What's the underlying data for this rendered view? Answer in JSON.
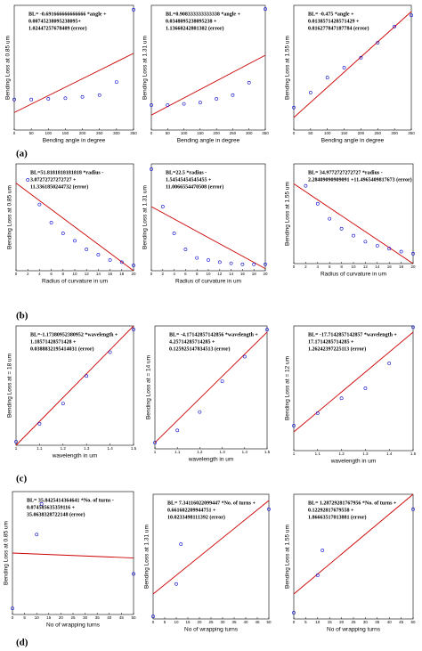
{
  "panel_labels": [
    "(a)",
    "(b)",
    "(c)",
    "(d)"
  ],
  "chart_data": [
    {
      "type": "scatter",
      "x_label": "Bending angle in degree",
      "y_label": "Bending Loss at 0.85 um",
      "annotation": [
        "BL= -0.691666666666666 *angle +",
        "0.00745238095238095+",
        "1.02447257678409 (error)"
      ],
      "xlim": [
        0,
        350
      ],
      "xticks": [
        0,
        50,
        100,
        150,
        200,
        250,
        300,
        350
      ],
      "ylim": [
        0,
        1
      ],
      "points": {
        "color": "#0000cc",
        "x": [
          0,
          50,
          100,
          150,
          200,
          250,
          300,
          350
        ],
        "y": [
          0.245,
          0.245,
          0.25,
          0.255,
          0.266,
          0.28,
          0.385,
          0.965
        ]
      },
      "fit_line": {
        "color": "#cc0000",
        "x": [
          0,
          350
        ],
        "y": [
          0.14,
          0.615
        ]
      }
    },
    {
      "type": "scatter",
      "x_label": "Bending angle in degree",
      "y_label": "Bending Loss at 1.31 um",
      "annotation": [
        "BL=0.908333333333338 *angle +",
        "0.0348095238095238 +",
        "1.13660242801302 (error)"
      ],
      "xlim": [
        0,
        350
      ],
      "xticks": [
        0,
        50,
        100,
        150,
        200,
        250,
        300,
        350
      ],
      "ylim": [
        0,
        1
      ],
      "points": {
        "color": "#0000cc",
        "x": [
          0,
          50,
          100,
          150,
          200,
          250,
          300,
          350
        ],
        "y": [
          0.2,
          0.2,
          0.21,
          0.22,
          0.25,
          0.28,
          0.38,
          0.97
        ]
      },
      "fit_line": {
        "color": "#cc0000",
        "x": [
          0,
          350
        ],
        "y": [
          0.12,
          0.6
        ]
      }
    },
    {
      "type": "scatter",
      "x_label": "Bending angle in degree",
      "y_label": "Bending Loss at 1.55 um",
      "annotation": [
        "BL= -0.475 *angle +",
        "0.0138571428571429 +",
        "0.816277847187784 (error)"
      ],
      "xlim": [
        0,
        350
      ],
      "xticks": [
        0,
        50,
        100,
        150,
        200,
        250,
        300,
        350
      ],
      "ylim": [
        0,
        1
      ],
      "points": {
        "color": "#0000cc",
        "x": [
          0,
          50,
          100,
          150,
          200,
          250,
          300,
          350
        ],
        "y": [
          0.18,
          0.3,
          0.42,
          0.5,
          0.58,
          0.7,
          0.83,
          0.92
        ]
      },
      "fit_line": {
        "color": "#cc0000",
        "x": [
          0,
          350
        ],
        "y": [
          0.1,
          0.95
        ]
      }
    },
    {
      "type": "scatter",
      "x_label": "Radius of curvature in um",
      "y_label": "Bending Loss at 0.85 um",
      "annotation": [
        "BL=51.8181818181818 *radius -",
        "3.07272727272727 +",
        "11.3361850244732 (error)"
      ],
      "xlim": [
        0,
        20
      ],
      "xticks": [
        0,
        2,
        4,
        6,
        8,
        10,
        12,
        14,
        16,
        18,
        20
      ],
      "ylim": [
        0,
        1
      ],
      "points": {
        "color": "#0000cc",
        "x": [
          2,
          4,
          6,
          8,
          10,
          12,
          14,
          16,
          18,
          20
        ],
        "y": [
          0.85,
          0.62,
          0.45,
          0.35,
          0.28,
          0.2,
          0.15,
          0.1,
          0.08,
          0.05
        ]
      },
      "fit_line": {
        "color": "#cc0000",
        "x": [
          0,
          20
        ],
        "y": [
          0.82,
          0
        ]
      }
    },
    {
      "type": "scatter",
      "x_label": "Radius of curvature in um",
      "y_label": "Bending Loss at 1.31 um",
      "annotation": [
        "BL=22.5 *radius -",
        "1.54545454545455 +",
        "11.0066554470508 (error)"
      ],
      "xlim": [
        0,
        20
      ],
      "xticks": [
        0,
        2,
        4,
        6,
        8,
        10,
        12,
        14,
        16,
        18,
        20
      ],
      "ylim": [
        0,
        1
      ],
      "points": {
        "color": "#0000cc",
        "x": [
          0,
          2,
          4,
          6,
          8,
          10,
          12,
          14,
          16,
          18,
          20
        ],
        "y": [
          0.95,
          0.6,
          0.35,
          0.2,
          0.12,
          0.1,
          0.08,
          0.07,
          0.06,
          0.06,
          0.06
        ]
      },
      "fit_line": {
        "color": "#cc0000",
        "x": [
          0,
          20
        ],
        "y": [
          0.6,
          0.02
        ]
      }
    },
    {
      "type": "scatter",
      "x_label": "Radius of curvature in um",
      "y_label": "Bending Loss at 1.55 um",
      "annotation": [
        "BL= 34.9772727272727 *radius -",
        "2.28409090909091 +11.4965409817673 (error)"
      ],
      "xlim": [
        0,
        20
      ],
      "xticks": [
        0,
        2,
        4,
        6,
        8,
        10,
        12,
        14,
        16,
        18,
        20
      ],
      "ylim": [
        0,
        1
      ],
      "points": {
        "color": "#0000cc",
        "x": [
          2,
          4,
          6,
          8,
          10,
          12,
          14,
          16,
          18,
          20
        ],
        "y": [
          0.78,
          0.6,
          0.45,
          0.35,
          0.28,
          0.22,
          0.18,
          0.15,
          0.12,
          0.1
        ]
      },
      "fit_line": {
        "color": "#cc0000",
        "x": [
          0,
          20
        ],
        "y": [
          0.8,
          0
        ]
      }
    },
    {
      "type": "scatter",
      "x_label": "wavelength in um",
      "y_label": "Bending Loss at = 18 um",
      "annotation": [
        "BL=-1.17380952380952 *wavelength +",
        "1.18571428571428 +",
        "0.0388832195414031 (error)"
      ],
      "xlim": [
        1,
        1.5
      ],
      "xticks": [
        1,
        1.1,
        1.2,
        1.3,
        1.4,
        1.5
      ],
      "ylim": [
        0,
        1
      ],
      "points": {
        "color": "#0000cc",
        "x": [
          1,
          1.1,
          1.2,
          1.3,
          1.4,
          1.5
        ],
        "y": [
          0.03,
          0.18,
          0.35,
          0.58,
          0.78,
          0.97
        ]
      },
      "fit_line": {
        "color": "#cc0000",
        "x": [
          1,
          1.5
        ],
        "y": [
          0,
          1
        ]
      }
    },
    {
      "type": "scatter",
      "x_label": "wavelength in um",
      "y_label": "Bending Loss at = 14 um",
      "annotation": [
        "BL= -4.17142857142856 *wavelength +",
        "4.25714285714285 +",
        "0.125925147834513 (error)"
      ],
      "xlim": [
        1,
        1.5
      ],
      "xticks": [
        1,
        1.1,
        1.2,
        1.3,
        1.4,
        1.5
      ],
      "ylim": [
        0,
        1
      ],
      "points": {
        "color": "#0000cc",
        "x": [
          1,
          1.1,
          1.2,
          1.3,
          1.4,
          1.5
        ],
        "y": [
          0.05,
          0.15,
          0.3,
          0.55,
          0.75,
          0.97
        ]
      },
      "fit_line": {
        "color": "#cc0000",
        "x": [
          1,
          1.5
        ],
        "y": [
          0.05,
          0.95
        ]
      }
    },
    {
      "type": "scatter",
      "x_label": "wavelength in um",
      "y_label": "Bending Loss at = 12 um",
      "annotation": [
        "BL= -17.7142857142857 *wavelength +",
        "17.1714285714285 +",
        "1.26242397225113 (error)"
      ],
      "xlim": [
        1,
        1.5
      ],
      "xticks": [
        1,
        1.1,
        1.2,
        1.3,
        1.4,
        1.5
      ],
      "ylim": [
        0,
        1
      ],
      "points": {
        "color": "#0000cc",
        "x": [
          1,
          1.1,
          1.2,
          1.3,
          1.4,
          1.5
        ],
        "y": [
          0.2,
          0.3,
          0.42,
          0.5,
          0.7,
          0.99
        ]
      },
      "fit_line": {
        "color": "#cc0000",
        "x": [
          1,
          1.5
        ],
        "y": [
          0.15,
          0.95
        ]
      }
    },
    {
      "type": "scatter",
      "x_label": "No of wrapping turns",
      "y_label": "Bending Loss at 0.85 um",
      "annotation": [
        "BL= 35.8425414364641 *No. of turns -",
        "0.074585635359116 +",
        "35.0638328722148 (error)"
      ],
      "xlim": [
        0,
        50
      ],
      "xticks": [
        0,
        5,
        10,
        15,
        20,
        25,
        30,
        35,
        40,
        45,
        50
      ],
      "ylim": [
        0,
        1
      ],
      "points": {
        "color": "#0000cc",
        "x": [
          0,
          10,
          12,
          50
        ],
        "y": [
          0.05,
          0.65,
          0.9,
          0.33
        ]
      },
      "fit_line": {
        "color": "#cc0000",
        "x": [
          0,
          50
        ],
        "y": [
          0.5,
          0.46
        ]
      }
    },
    {
      "type": "scatter",
      "x_label": "No of wrapping turns",
      "y_label": "Bending Loss at 1.31 um",
      "annotation": [
        "BL= 7.34116022099447 *No. of turns +",
        "0.661602209944751 +",
        "10.0233498111392 (error)"
      ],
      "xlim": [
        0,
        50
      ],
      "xticks": [
        0,
        5,
        10,
        15,
        20,
        25,
        30,
        35,
        40,
        45,
        50
      ],
      "ylim": [
        0,
        1
      ],
      "points": {
        "color": "#0000cc",
        "x": [
          0,
          10,
          12,
          50
        ],
        "y": [
          0.02,
          0.28,
          0.6,
          0.88
        ]
      },
      "fit_line": {
        "color": "#cc0000",
        "x": [
          0,
          50
        ],
        "y": [
          0.2,
          0.95
        ]
      }
    },
    {
      "type": "scatter",
      "x_label": "No of wrapping turns",
      "y_label": "Bending Loss at 1.55 um",
      "annotation": [
        "BL= 1.28729281767956 *No. of turns +",
        "0.12292817679558 +",
        "1.86663517013881 (error)"
      ],
      "xlim": [
        0,
        50
      ],
      "xticks": [
        0,
        5,
        10,
        15,
        20,
        25,
        30,
        35,
        40,
        45,
        50
      ],
      "ylim": [
        0,
        1
      ],
      "points": {
        "color": "#0000cc",
        "x": [
          0,
          10,
          12,
          50
        ],
        "y": [
          0.05,
          0.35,
          0.55,
          0.88
        ]
      },
      "fit_line": {
        "color": "#cc0000",
        "x": [
          0,
          50
        ],
        "y": [
          0.2,
          1
        ]
      }
    }
  ]
}
